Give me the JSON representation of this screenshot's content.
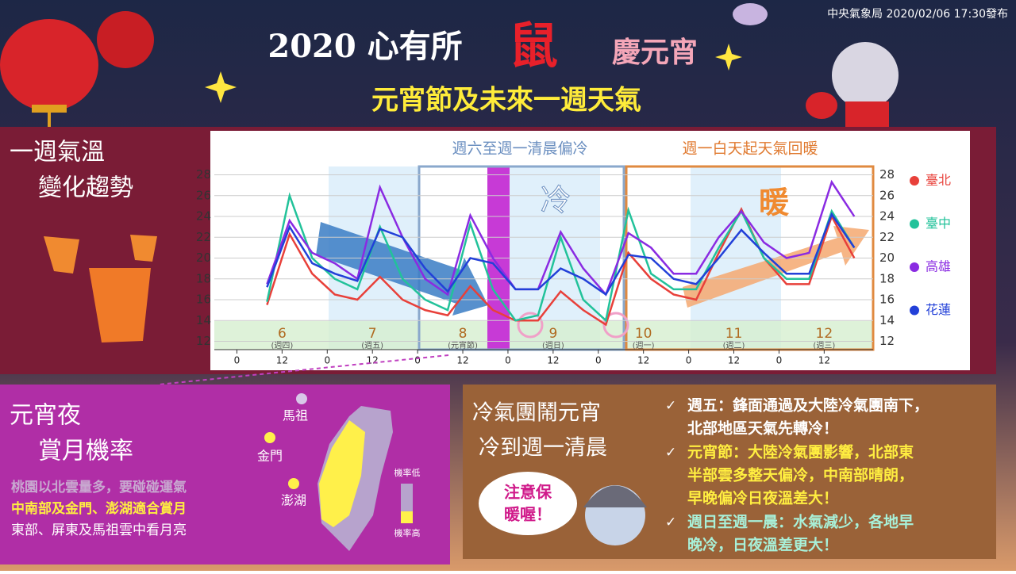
{
  "header": {
    "title_a": "2020 心有所",
    "title_b": "鼠",
    "title_c": "慶元宵",
    "subtitle": "元宵節及未來一週天氣",
    "source": "中央氣象局 2020/02/06 17:30發布"
  },
  "left_panel": {
    "line1": "一週氣溫",
    "line2": "變化趨勢"
  },
  "moon_panel": {
    "title1": "元宵夜",
    "title2": "賞月機率",
    "notes": [
      "桃園以北雲量多，要碰碰運氣",
      "中南部及金門、澎湖適合賞月",
      "東部、屏東及馬祖雲中看月亮"
    ],
    "places": [
      "馬祖",
      "金門",
      "澎湖"
    ],
    "scale_low": "機率低",
    "scale_high": "機率高"
  },
  "cold_panel": {
    "title1": "冷氣團鬧元宵",
    "title2": "冷到週一清晨",
    "bubble1": "注意保",
    "bubble2": "暖喔！",
    "bullets": [
      [
        "週五：鋒面通過及大陸冷氣團南下，",
        "北部地區天氣先轉冷！"
      ],
      [
        "元宵節：大陸冷氣團影響，北部東",
        "半部雲多整天偏冷，中南部晴朗，",
        "早晚偏冷日夜溫差大！"
      ],
      [
        "週日至週一晨：水氣減少，各地早",
        "晚冷，日夜溫差更大！"
      ]
    ]
  },
  "chart_data": {
    "type": "line",
    "annotations": [
      "週六至週一清晨偏冷",
      "週一白天起天氣回暖",
      "冷",
      "暖"
    ],
    "day_labels": [
      "6",
      "7",
      "8",
      "9",
      "10",
      "11",
      "12"
    ],
    "weekday_labels": [
      "(週四)",
      "(週五)",
      "(元宵節)",
      "(週日)",
      "(週一)",
      "(週二)",
      "(週三)"
    ],
    "x": [
      8,
      14,
      20,
      26,
      32,
      38,
      44,
      50,
      56,
      62,
      68,
      74,
      80,
      86,
      92,
      98,
      104,
      110,
      116,
      122,
      128,
      134,
      140,
      146,
      152,
      158,
      164
    ],
    "series": [
      {
        "name": "臺北",
        "color": "#e8403a",
        "values": [
          15.5,
          22.3,
          18.5,
          16.5,
          16.0,
          18.2,
          16.0,
          15.0,
          14.5,
          17.3,
          15.0,
          14.0,
          14.0,
          16.8,
          15.0,
          13.6,
          20.5,
          18.0,
          16.5,
          16.0,
          20.5,
          24.7,
          20.0,
          17.5,
          17.5,
          24.0,
          20.0
        ]
      },
      {
        "name": "臺中",
        "color": "#22c29a",
        "values": [
          15.8,
          26.0,
          20.0,
          18.0,
          17.0,
          23.0,
          18.0,
          16.0,
          15.0,
          23.3,
          17.0,
          14.0,
          14.5,
          22.0,
          16.0,
          14.0,
          24.6,
          18.5,
          17.0,
          17.0,
          21.0,
          24.5,
          20.0,
          18.0,
          18.0,
          24.5,
          21.0
        ]
      },
      {
        "name": "高雄",
        "color": "#8a2be2",
        "values": [
          17.5,
          23.6,
          20.5,
          19.5,
          18.0,
          26.8,
          22.0,
          18.0,
          16.5,
          24.1,
          20.0,
          17.0,
          17.0,
          22.5,
          19.0,
          16.5,
          22.4,
          21.0,
          18.5,
          18.5,
          22.0,
          24.5,
          21.5,
          20.0,
          20.5,
          27.3,
          24.0
        ]
      },
      {
        "name": "花蓮",
        "color": "#2240d8",
        "values": [
          17.2,
          23.0,
          19.5,
          18.5,
          17.8,
          22.8,
          22.0,
          19.0,
          16.8,
          20.0,
          19.5,
          17.0,
          17.0,
          19.0,
          18.0,
          16.5,
          20.3,
          20.0,
          18.0,
          17.5,
          20.0,
          22.7,
          20.5,
          18.5,
          18.5,
          24.2,
          21.0
        ]
      }
    ],
    "xlim": [
      -6,
      169
    ],
    "xticks": [
      0,
      12,
      {
        "value": 24,
        "label": "0"
      },
      {
        "value": 36,
        "label": "12"
      },
      {
        "value": 48,
        "label": "0"
      },
      {
        "value": 60,
        "label": "12"
      },
      {
        "value": 72,
        "label": "0"
      },
      {
        "value": 84,
        "label": "12"
      },
      {
        "value": 96,
        "label": "0"
      },
      {
        "value": 108,
        "label": "12"
      },
      {
        "value": 120,
        "label": "0"
      },
      {
        "value": 132,
        "label": "12"
      },
      {
        "value": 144,
        "label": "0"
      },
      {
        "value": 156,
        "label": "12"
      }
    ],
    "ylim": [
      11.2,
      28.8
    ],
    "yticks": [
      12,
      14,
      16,
      18,
      20,
      22,
      24,
      26,
      28
    ],
    "grid": true
  }
}
